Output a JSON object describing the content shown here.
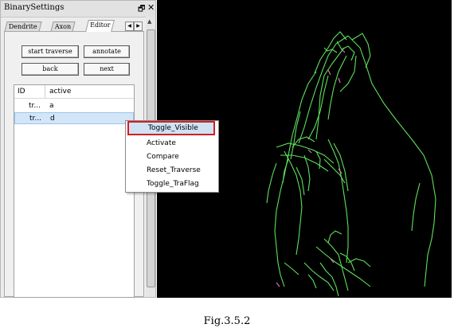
{
  "panel": {
    "title": "BinarySettings",
    "float_glyph": "🗗",
    "close_glyph": "✕",
    "tabs": [
      {
        "label": "Dendrite",
        "active": false
      },
      {
        "label": "Axon",
        "active": false
      },
      {
        "label": "Editor",
        "active": true
      }
    ],
    "tab_scroll": {
      "left_icon": "arrow-left-icon",
      "right_icon": "arrow-right-icon"
    },
    "buttons": {
      "start_traverse": "start traverse",
      "annotate": "annotate",
      "back": "back",
      "next": "next"
    },
    "list": {
      "headers": [
        "ID",
        "active"
      ],
      "rows": [
        {
          "id": "tr...",
          "active": "a",
          "selected": false
        },
        {
          "id": "tr...",
          "active": "d",
          "selected": true
        }
      ]
    }
  },
  "context_menu": {
    "items": [
      "Toggle_Visible",
      "Activate",
      "Compare",
      "Reset_Traverse",
      "Toggle_TraFlag"
    ],
    "highlighted": "Toggle_Visible",
    "highlight_border_color": "#d32020"
  },
  "viewer": {
    "background": "#000000",
    "trace_color": "#5ee05a",
    "marker_color": "#e070c0"
  },
  "caption": "Fig.3.5.2"
}
